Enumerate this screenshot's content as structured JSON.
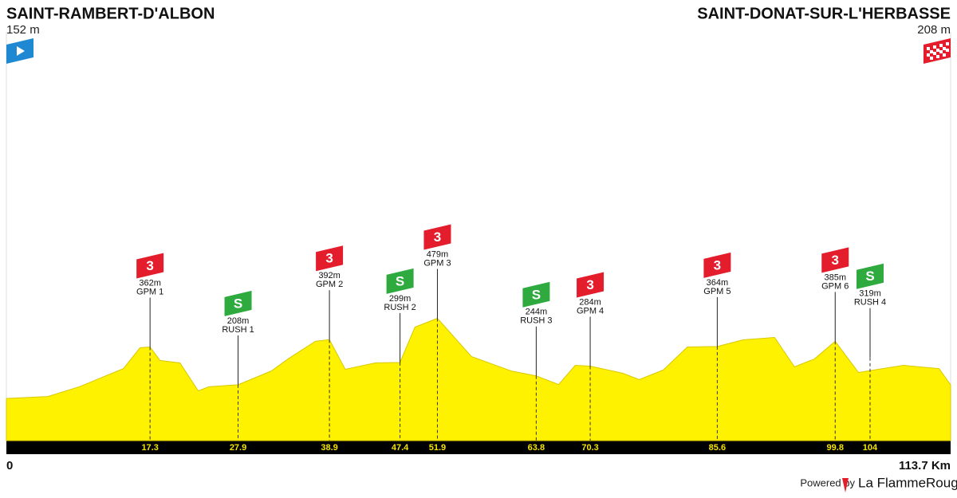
{
  "chart_data": {
    "type": "elevation-profile",
    "start": {
      "name": "SAINT-RAMBERT-D'ALBON",
      "altitude": "152 m"
    },
    "finish": {
      "name": "SAINT-DONAT-SUR-L'HERBASSE",
      "altitude": "208 m"
    },
    "x": [
      0,
      5,
      8.8,
      14.1,
      16.1,
      17.3,
      18.5,
      20.9,
      23.1,
      24.4,
      27.9,
      31.9,
      33.9,
      37.2,
      38.9,
      40.8,
      44.4,
      47.4,
      49.2,
      51.9,
      56,
      60.8,
      63.8,
      66.5,
      68.5,
      70.3,
      74.2,
      76.2,
      79.1,
      82,
      85.6,
      88.7,
      92.5,
      94.9,
      97.3,
      99.8,
      102.6,
      108,
      112.3,
      113.7
    ],
    "values": [
      152,
      160,
      200,
      274,
      359,
      362,
      307,
      297,
      183,
      200,
      208,
      264,
      313,
      385,
      392,
      271,
      297,
      299,
      443,
      479,
      323,
      264,
      244,
      209,
      287,
      284,
      255,
      229,
      268,
      362,
      364,
      391,
      401,
      281,
      313,
      385,
      258,
      287,
      274,
      208
    ],
    "color": "#fff200",
    "xlim": [
      0,
      113.7
    ],
    "ylim": [
      -20,
      1680
    ],
    "xticks": [
      0,
      {
        "value": 113.7,
        "label": "113.7 Km"
      }
    ],
    "checkpoints": [
      {
        "km": 17.3,
        "altitude": 362,
        "altitude_label": "362m",
        "name": "GPM 1",
        "kind": "gpm",
        "flag": "3"
      },
      {
        "km": 27.9,
        "altitude": 208,
        "altitude_label": "208m",
        "name": "RUSH 1",
        "kind": "sprint",
        "flag": "S"
      },
      {
        "km": 38.9,
        "altitude": 392,
        "altitude_label": "392m",
        "name": "GPM 2",
        "kind": "gpm",
        "flag": "3"
      },
      {
        "km": 47.4,
        "altitude": 299,
        "altitude_label": "299m",
        "name": "RUSH 2",
        "kind": "sprint",
        "flag": "S"
      },
      {
        "km": 51.9,
        "altitude": 479,
        "altitude_label": "479m",
        "name": "GPM 3",
        "kind": "gpm",
        "flag": "3"
      },
      {
        "km": 63.8,
        "altitude": 244,
        "altitude_label": "244m",
        "name": "RUSH 3",
        "kind": "sprint",
        "flag": "S"
      },
      {
        "km": 70.3,
        "altitude": 284,
        "altitude_label": "284m",
        "name": "GPM 4",
        "kind": "gpm",
        "flag": "3"
      },
      {
        "km": 85.6,
        "altitude": 364,
        "altitude_label": "364m",
        "name": "GPM 5",
        "kind": "gpm",
        "flag": "3"
      },
      {
        "km": 99.8,
        "altitude": 385,
        "altitude_label": "385m",
        "name": "GPM 6",
        "kind": "gpm",
        "flag": "3"
      },
      {
        "km": 104,
        "altitude": 319,
        "altitude_label": "319m",
        "name": "RUSH 4",
        "kind": "sprint",
        "flag": "S"
      }
    ]
  },
  "footer": {
    "powered": "Powered by",
    "brand": "La FlammeRouge"
  }
}
